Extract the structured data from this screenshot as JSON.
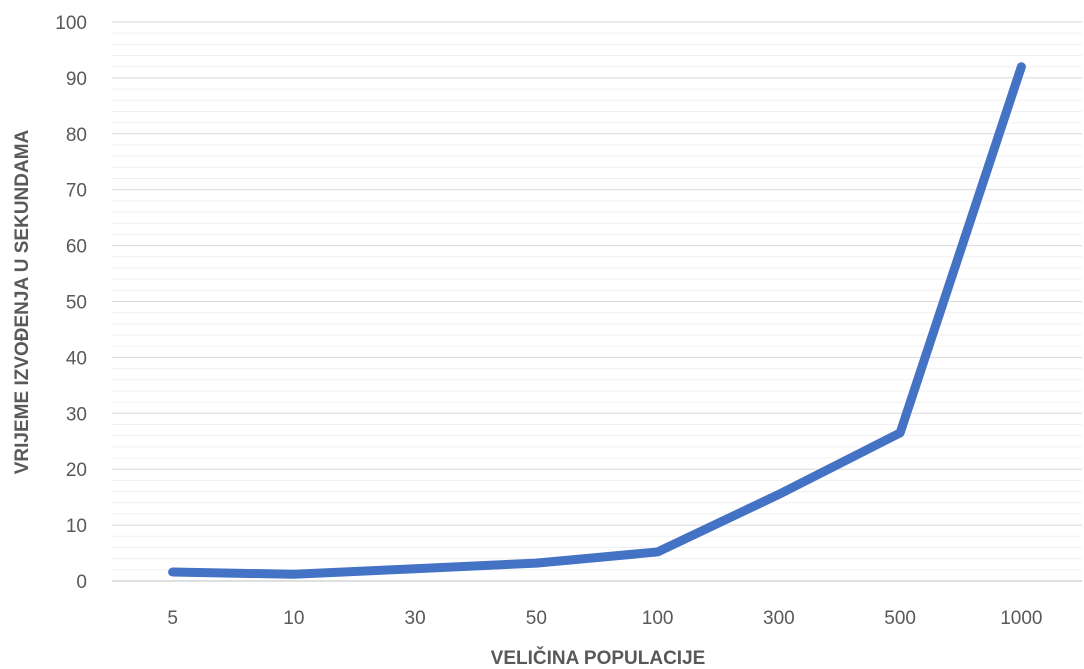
{
  "chart_data": {
    "type": "line",
    "title": "",
    "xlabel": "VELIČINA POPULACIJE",
    "ylabel": "VRIJEME IZVOĐENJA U SEKUNDAMA",
    "categories": [
      "5",
      "10",
      "30",
      "50",
      "100",
      "300",
      "500",
      "1000"
    ],
    "series": [
      {
        "values": [
          1.6,
          1.2,
          2.2,
          3.2,
          5.2,
          15.5,
          26.5,
          92
        ]
      }
    ],
    "ylim": [
      0,
      100
    ],
    "y_ticks": [
      0,
      10,
      20,
      30,
      40,
      50,
      60,
      70,
      80,
      90,
      100
    ],
    "grid": "horizontal major and minor",
    "legend": "none",
    "colors": {
      "line": "#4472C4",
      "major_grid": "#D9D9D9",
      "minor_grid": "#F0F0F0",
      "axis": "#BFBFBF",
      "text": "#595959"
    }
  }
}
